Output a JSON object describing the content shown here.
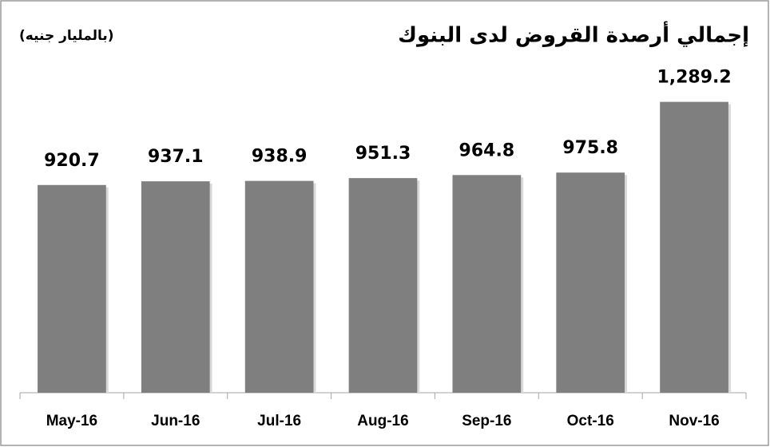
{
  "chart_data": {
    "type": "bar",
    "title": "إجمالي أرصدة القروض لدى البنوك",
    "subtitle": "(بالمليار جنيه)",
    "categories": [
      "May-16",
      "Jun-16",
      "Jul-16",
      "Aug-16",
      "Sep-16",
      "Oct-16",
      "Nov-16"
    ],
    "values": [
      920.7,
      937.1,
      938.9,
      951.3,
      964.8,
      975.8,
      1289.2
    ],
    "value_labels": [
      "920.7",
      "937.1",
      "938.9",
      "951.3",
      "964.8",
      "975.8",
      "1,289.2"
    ],
    "color": "#7f7f7f",
    "ylim": [
      0,
      1440
    ]
  }
}
